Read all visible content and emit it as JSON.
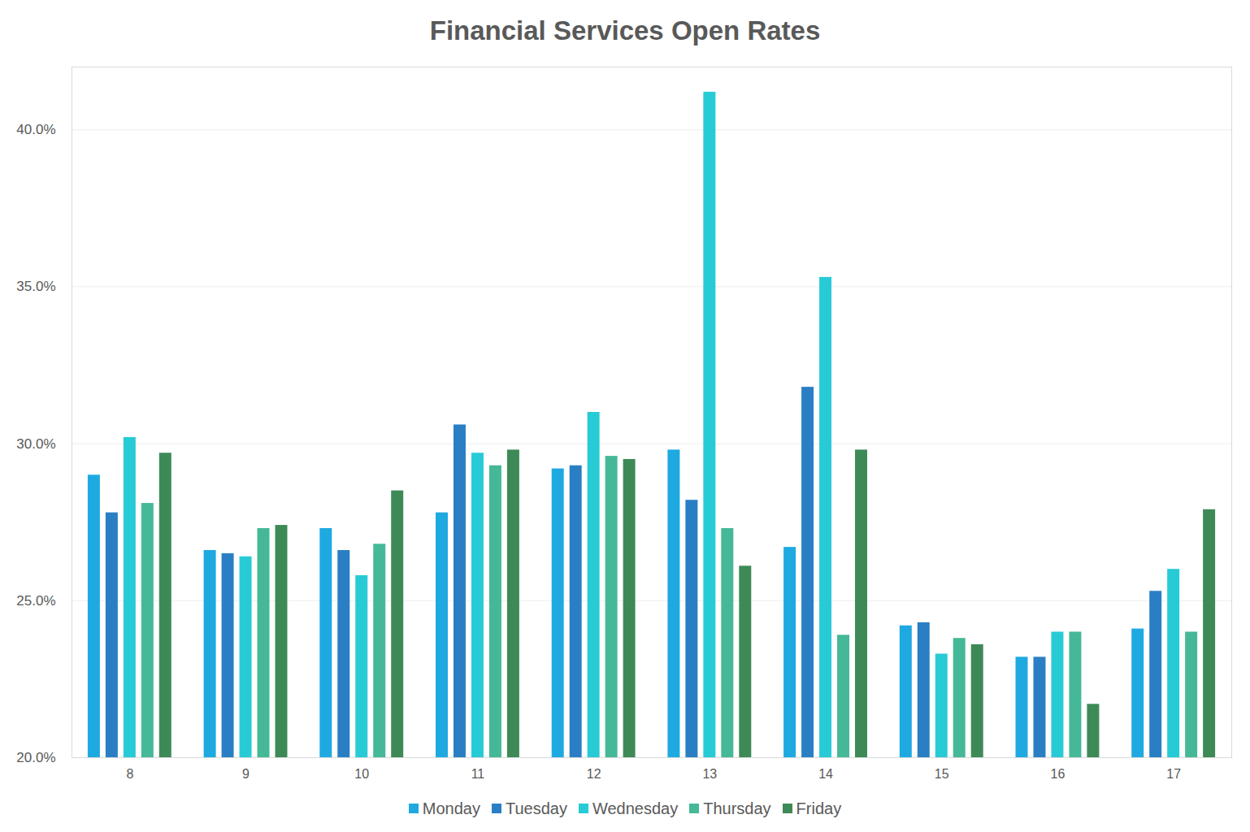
{
  "chart_data": {
    "type": "bar",
    "title": "Financial Services Open Rates",
    "categories": [
      8,
      9,
      10,
      11,
      12,
      13,
      14,
      15,
      16,
      17
    ],
    "series": [
      {
        "name": "Monday",
        "color": "#1fa9e1",
        "values": [
          29.0,
          26.6,
          27.3,
          27.8,
          29.2,
          29.8,
          26.7,
          24.2,
          23.2,
          24.1
        ]
      },
      {
        "name": "Tuesday",
        "color": "#2a7fc4",
        "values": [
          27.8,
          26.5,
          26.6,
          30.6,
          29.3,
          28.2,
          31.8,
          24.3,
          23.2,
          25.3
        ]
      },
      {
        "name": "Wednesday",
        "color": "#27cbd6",
        "values": [
          30.2,
          26.4,
          25.8,
          29.7,
          31.0,
          41.2,
          35.3,
          23.3,
          24.0,
          26.0
        ]
      },
      {
        "name": "Thursday",
        "color": "#45b897",
        "values": [
          28.1,
          27.3,
          26.8,
          29.3,
          29.6,
          27.3,
          23.9,
          23.8,
          24.0,
          24.0
        ]
      },
      {
        "name": "Friday",
        "color": "#3e8a57",
        "values": [
          29.7,
          27.4,
          28.5,
          29.8,
          29.5,
          26.1,
          29.8,
          23.6,
          21.7,
          27.9
        ]
      }
    ],
    "ylim": [
      20,
      42
    ],
    "yticks": [
      {
        "value": 20,
        "label": "20.0%"
      },
      {
        "value": 25,
        "label": "25.0%"
      },
      {
        "value": 30,
        "label": "30.0%"
      },
      {
        "value": 35,
        "label": "35.0%"
      },
      {
        "value": 40,
        "label": "40.0%"
      }
    ],
    "grid": true,
    "legend": "bottom"
  }
}
